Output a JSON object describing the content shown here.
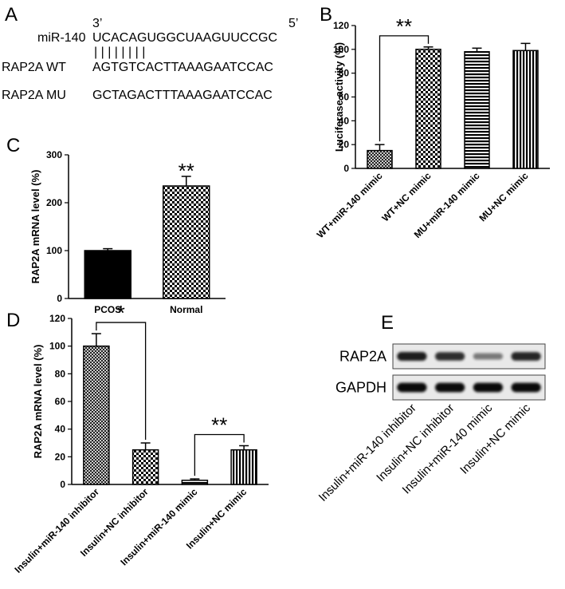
{
  "panels": {
    "a": "A",
    "b": "B",
    "c": "C",
    "d": "D",
    "e": "E"
  },
  "sequence": {
    "end3": "3’",
    "end5": "5’",
    "rows": [
      {
        "label": "miR-140",
        "seq": "UCACAGUGGCUAAGUUCCGC"
      },
      {
        "label": "RAP2A WT",
        "seq": "AGTGTCACTTAAAGAATCCAC"
      },
      {
        "label": "RAP2A MU",
        "seq": "GCTAGACTTTAAAGAATCCAC"
      }
    ],
    "pair_marks": "| | | | | | | |"
  },
  "chart_data": [
    {
      "id": "B",
      "type": "bar",
      "ylabel": "Luciferase activity (%)",
      "ylim": [
        0,
        120
      ],
      "yticks": [
        0,
        20,
        40,
        60,
        80,
        100,
        120
      ],
      "categories": [
        "WT+miR-140 mimic",
        "WT+NC mimic",
        "MU+miR-140 mimic",
        "MU+NC mimic"
      ],
      "values": [
        15,
        100,
        98,
        99
      ],
      "errors": [
        5,
        2,
        3,
        6
      ],
      "patterns": [
        "crosshatch",
        "checker",
        "hlines",
        "vlines"
      ],
      "significance": [
        {
          "from": 0,
          "to": 1,
          "label": "**"
        }
      ]
    },
    {
      "id": "C",
      "type": "bar",
      "ylabel": "RAP2A mRNA level (%)",
      "ylim": [
        0,
        300
      ],
      "yticks": [
        0,
        100,
        200,
        300
      ],
      "categories": [
        "PCOS",
        "Normal"
      ],
      "values": [
        100,
        235
      ],
      "errors": [
        4,
        20
      ],
      "patterns": [
        "solid",
        "checker"
      ],
      "significance": [
        {
          "over": 1,
          "label": "**"
        }
      ]
    },
    {
      "id": "D",
      "type": "bar",
      "ylabel": "RAP2A mRNA level (%)",
      "ylim": [
        0,
        120
      ],
      "yticks": [
        0,
        20,
        40,
        60,
        80,
        100,
        120
      ],
      "categories": [
        "Insulin+miR-140 inhibitor",
        "Insulin+NC inhibitor",
        "Insulin+miR-140 mimic",
        "Insulin+NC mimic"
      ],
      "values": [
        100,
        25,
        3,
        25
      ],
      "errors": [
        9,
        5,
        1,
        3
      ],
      "patterns": [
        "crosshatch",
        "checker",
        "hlines",
        "vlines"
      ],
      "significance": [
        {
          "from": 0,
          "to": 1,
          "label": "*"
        },
        {
          "from": 2,
          "to": 3,
          "label": "**"
        }
      ]
    }
  ],
  "western": {
    "rows": [
      {
        "label": "RAP2A",
        "intensity": [
          0.85,
          0.75,
          0.35,
          0.8
        ]
      },
      {
        "label": "GAPDH",
        "intensity": [
          0.95,
          0.95,
          0.95,
          0.95
        ]
      }
    ],
    "lanes": [
      "Insulin+miR-140 inhibitor",
      "Insulin+NC inhibitor",
      "Insulin+miR-140 mimic",
      "Insulin+NC mimic"
    ]
  }
}
